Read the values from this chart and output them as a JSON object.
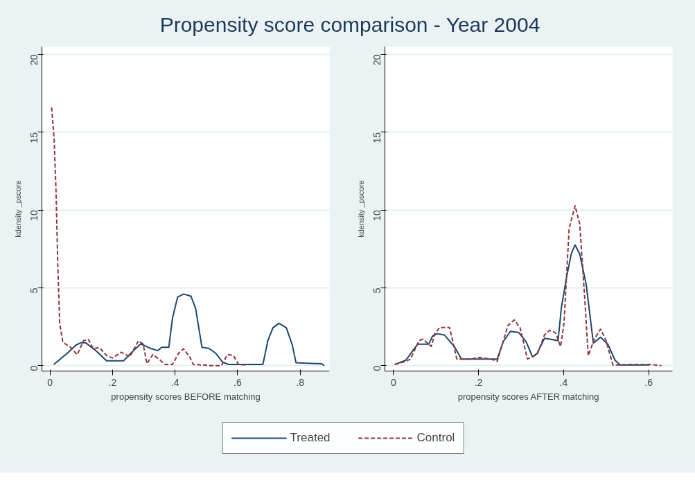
{
  "chart_data": [
    {
      "type": "line",
      "title": "Propensity score comparison - Year 2004",
      "xlabel": "propensity scores BEFORE matching",
      "ylabel": "kdensity _pscore",
      "xlim": [
        -0.026,
        0.894
      ],
      "ylim": [
        -0.35,
        20.5
      ],
      "xticks": [
        0,
        {
          "value": 0.2,
          "label": ".2"
        },
        {
          "value": 0.4,
          "label": ".4"
        },
        {
          "value": 0.6,
          "label": ".6"
        },
        {
          "value": 0.8,
          "label": ".8"
        }
      ],
      "yticks": [
        0,
        5,
        10,
        15,
        20
      ],
      "grid": "y",
      "legend": "bottom",
      "series": [
        {
          "name": "Treated",
          "color": "#1a476f",
          "line_style": "solid",
          "x": [
            0.012,
            0.056,
            0.083,
            0.099,
            0.114,
            0.15,
            0.181,
            0.235,
            0.259,
            0.29,
            0.322,
            0.345,
            0.357,
            0.38,
            0.392,
            0.408,
            0.427,
            0.451,
            0.466,
            0.486,
            0.509,
            0.529,
            0.552,
            0.572,
            0.681,
            0.697,
            0.713,
            0.732,
            0.756,
            0.775,
            0.787,
            0.819,
            0.869,
            0.877
          ],
          "values": [
            0.07,
            0.81,
            1.32,
            1.47,
            1.47,
            0.9,
            0.31,
            0.31,
            0.81,
            1.4,
            1.1,
            0.96,
            1.18,
            1.18,
            3.07,
            4.4,
            4.6,
            4.46,
            3.65,
            1.18,
            1.1,
            0.81,
            0.22,
            0.07,
            0.07,
            1.62,
            2.43,
            2.72,
            2.43,
            1.32,
            0.18,
            0.15,
            0.12,
            0
          ]
        },
        {
          "name": "Control",
          "color": "#90353b",
          "line_style": "dashed",
          "x": [
            0.005,
            0.013,
            0.019,
            0.025,
            0.031,
            0.041,
            0.064,
            0.087,
            0.107,
            0.123,
            0.138,
            0.158,
            0.181,
            0.2,
            0.228,
            0.255,
            0.283,
            0.298,
            0.31,
            0.329,
            0.353,
            0.368,
            0.392,
            0.411,
            0.427,
            0.447,
            0.458,
            0.486,
            0.517,
            0.548,
            0.568,
            0.587,
            0.603,
            0.626
          ],
          "values": [
            16.6,
            14.6,
            11.3,
            6.3,
            2.7,
            1.5,
            1.2,
            0.7,
            1.6,
            1.68,
            1.08,
            1.16,
            0.64,
            0.49,
            0.86,
            0.56,
            1.6,
            1.38,
            0.12,
            0.71,
            0.34,
            0.07,
            0.07,
            0.79,
            1.08,
            0.56,
            0.07,
            0.04,
            0,
            0,
            0.71,
            0.64,
            0.07,
            0.04
          ]
        }
      ]
    },
    {
      "type": "line",
      "xlabel": "propensity scores AFTER matching",
      "ylabel": "kdensity _pscore",
      "xlim": [
        -0.02,
        0.656
      ],
      "ylim": [
        -0.35,
        20.5
      ],
      "xticks": [
        0,
        {
          "value": 0.2,
          "label": ".2"
        },
        {
          "value": 0.4,
          "label": ".4"
        },
        {
          "value": 0.6,
          "label": ".6"
        }
      ],
      "yticks": [
        0,
        5,
        10,
        15,
        20
      ],
      "grid": "y",
      "series": [
        {
          "color": "#1a476f",
          "line_style": "solid",
          "x": [
            0.003,
            0.029,
            0.057,
            0.083,
            0.092,
            0.103,
            0.12,
            0.143,
            0.16,
            0.183,
            0.244,
            0.258,
            0.275,
            0.295,
            0.312,
            0.327,
            0.338,
            0.355,
            0.372,
            0.387,
            0.395,
            0.407,
            0.418,
            0.427,
            0.438,
            0.453,
            0.461,
            0.47,
            0.487,
            0.504,
            0.521,
            0.533,
            0.602
          ],
          "values": [
            0.07,
            0.34,
            1.38,
            1.38,
            1.9,
            2.05,
            1.97,
            1.23,
            0.42,
            0.42,
            0.42,
            1.53,
            2.2,
            2.12,
            1.53,
            0.56,
            0.79,
            1.75,
            1.68,
            1.6,
            3.75,
            5.68,
            7.17,
            7.76,
            7.17,
            5.24,
            3.46,
            1.45,
            1.82,
            1.38,
            0.34,
            0.04,
            0.04
          ]
        },
        {
          "color": "#90353b",
          "line_style": "dashed",
          "x": [
            0.003,
            0.029,
            0.04,
            0.06,
            0.069,
            0.089,
            0.097,
            0.109,
            0.132,
            0.149,
            0.16,
            0.183,
            0.201,
            0.229,
            0.244,
            0.269,
            0.284,
            0.298,
            0.315,
            0.338,
            0.355,
            0.367,
            0.381,
            0.393,
            0.401,
            0.413,
            0.427,
            0.438,
            0.45,
            0.458,
            0.473,
            0.487,
            0.499,
            0.516,
            0.533,
            0.55,
            0.602,
            0.63
          ],
          "values": [
            0.07,
            0.27,
            0.42,
            1.6,
            1.7,
            1.23,
            2.05,
            2.45,
            2.45,
            0.42,
            0.42,
            0.42,
            0.52,
            0.42,
            0.27,
            2.57,
            2.94,
            2.42,
            0.42,
            0.71,
            1.97,
            2.27,
            2.12,
            1.23,
            2.72,
            8.8,
            10.28,
            9.1,
            4.2,
            0.64,
            1.75,
            2.34,
            1.68,
            0.04,
            0.04,
            0.07,
            0.07,
            0
          ]
        }
      ]
    }
  ]
}
